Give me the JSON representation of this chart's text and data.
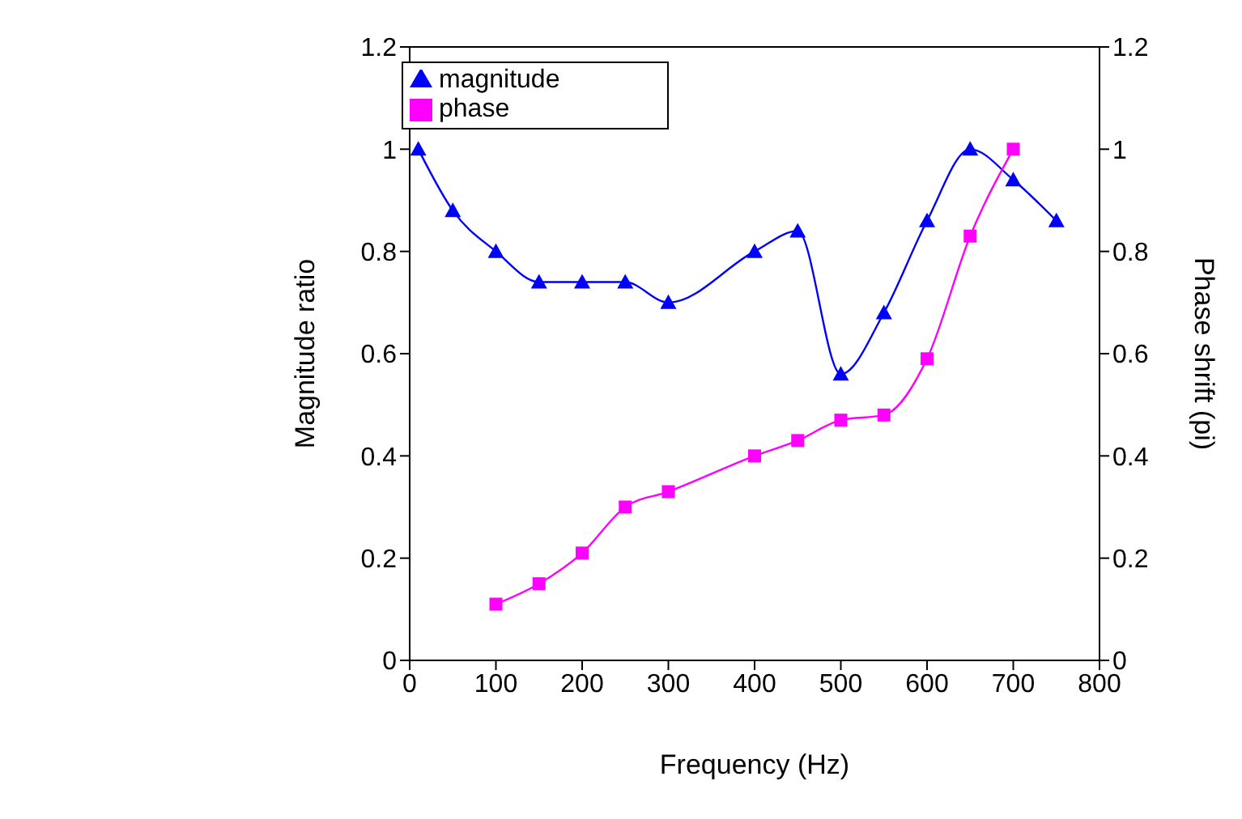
{
  "chart_data": {
    "type": "line",
    "xlabel": "Frequency (Hz)",
    "ylabel": "Magnitude ratio",
    "y2label": "Phase shrift (pi)",
    "xlim": [
      0,
      800
    ],
    "xticks": [
      0,
      100,
      200,
      300,
      400,
      500,
      600,
      700,
      800
    ],
    "ylim": [
      0,
      1.2
    ],
    "yticks": [
      0,
      0.2,
      0.4,
      0.6,
      0.8,
      1,
      1.2
    ],
    "y2lim": [
      0,
      1.2
    ],
    "y2ticks": [
      0,
      0.2,
      0.4,
      0.6,
      0.8,
      1,
      1.2
    ],
    "grid": false,
    "legend": "top",
    "series": [
      {
        "name": "magnitude",
        "color": "#0000ff",
        "marker": "triangle",
        "x": [
          10,
          50,
          100,
          150,
          200,
          250,
          300,
          400,
          450,
          500,
          550,
          600,
          650,
          700,
          750
        ],
        "values": [
          1.0,
          0.88,
          0.8,
          0.74,
          0.74,
          0.74,
          0.7,
          0.8,
          0.84,
          0.56,
          0.68,
          0.86,
          1.0,
          0.94,
          0.86
        ]
      },
      {
        "name": "phase",
        "color": "#ff00ff",
        "marker": "square",
        "axis": "y2",
        "x": [
          100,
          150,
          200,
          250,
          300,
          400,
          450,
          500,
          550,
          600,
          650,
          700
        ],
        "values": [
          0.11,
          0.15,
          0.21,
          0.3,
          0.33,
          0.4,
          0.43,
          0.47,
          0.48,
          0.59,
          0.83,
          1.0
        ]
      }
    ]
  }
}
